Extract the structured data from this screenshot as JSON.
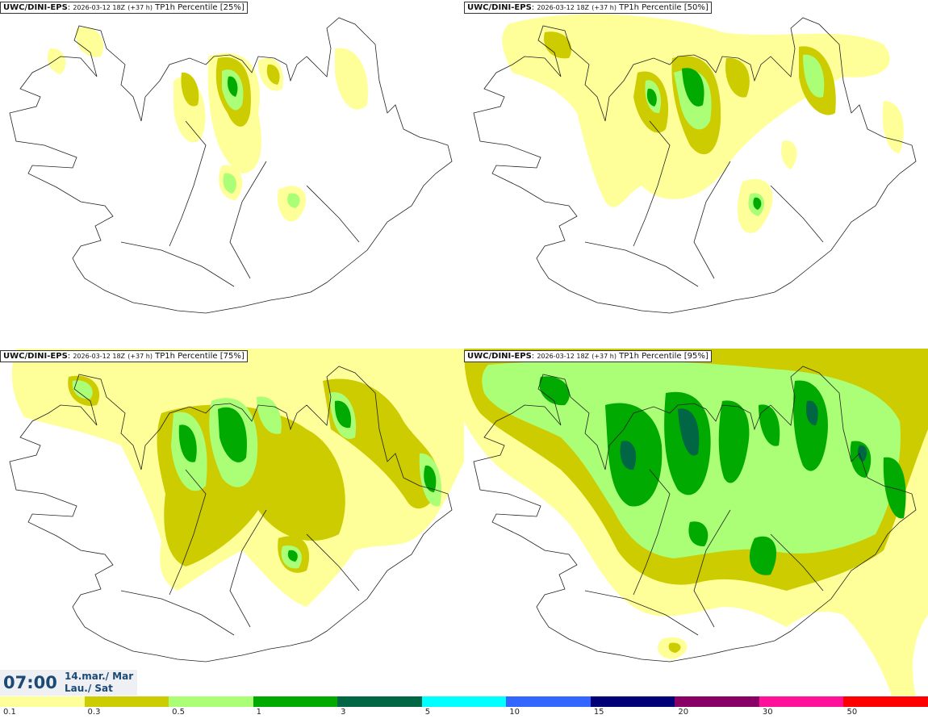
{
  "panels": [
    {
      "model": "UWC/DINI-EPS",
      "run": "2026-03-12 18Z",
      "lead": "(+37 h)",
      "param": "TP1h Percentile [25%]"
    },
    {
      "model": "UWC/DINI-EPS",
      "run": "2026-03-12 18Z",
      "lead": "(+37 h)",
      "param": "TP1h Percentile [50%]"
    },
    {
      "model": "UWC/DINI-EPS",
      "run": "2026-03-12 18Z",
      "lead": "(+37 h)",
      "param": "TP1h Percentile [75%]"
    },
    {
      "model": "UWC/DINI-EPS",
      "run": "2026-03-12 18Z",
      "lead": "(+37 h)",
      "param": "TP1h Percentile [95%]"
    }
  ],
  "valid": {
    "time": "07:00",
    "date": "14.mar./ Mar",
    "day": "Lau./ Sat"
  },
  "colorbar": {
    "colors": [
      "#ffff99",
      "#cccc00",
      "#aaff77",
      "#00aa00",
      "#006644",
      "#00ffff",
      "#3366ff",
      "#000077",
      "#880066",
      "#ff1199",
      "#ff0000"
    ],
    "ticks": [
      "0.1",
      "0.3",
      "0.5",
      "1",
      "3",
      "5",
      "10",
      "15",
      "20",
      "30",
      "50"
    ]
  }
}
